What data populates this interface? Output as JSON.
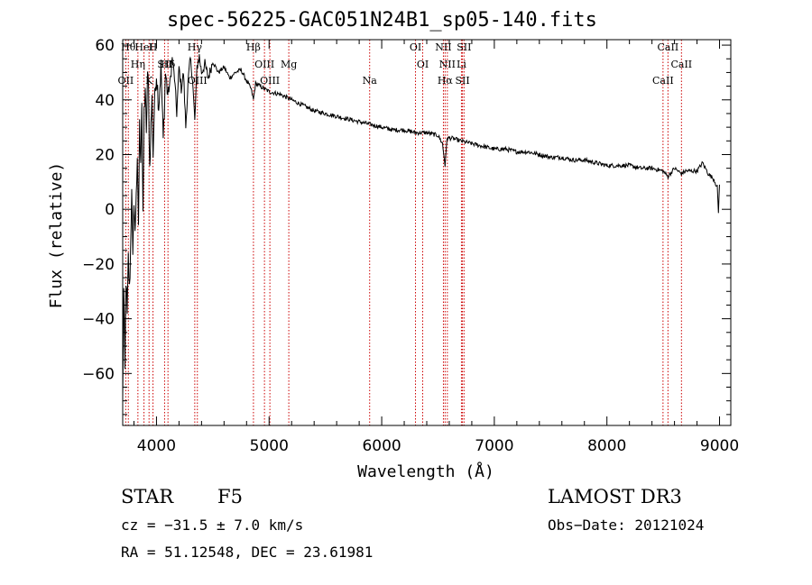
{
  "chart_data": {
    "type": "line",
    "title": "spec-56225-GAC051N24B1_sp05-140.fits",
    "xlabel": "Wavelength (Å)",
    "ylabel": "Flux (relative)",
    "xlim": [
      3700,
      9100
    ],
    "ylim": [
      -79,
      62
    ],
    "xticks": [
      4000,
      5000,
      6000,
      7000,
      8000,
      9000
    ],
    "yticks": [
      -60,
      -40,
      -20,
      0,
      20,
      40,
      60
    ],
    "series": [
      {
        "name": "spectrum",
        "x": [
          3700,
          3710,
          3720,
          3730,
          3740,
          3750,
          3760,
          3770,
          3780,
          3790,
          3800,
          3810,
          3820,
          3830,
          3840,
          3850,
          3860,
          3870,
          3880,
          3890,
          3900,
          3910,
          3920,
          3930,
          3940,
          3950,
          3960,
          3970,
          3980,
          3990,
          4000,
          4020,
          4040,
          4060,
          4080,
          4100,
          4120,
          4140,
          4160,
          4180,
          4200,
          4220,
          4240,
          4260,
          4280,
          4300,
          4320,
          4340,
          4360,
          4380,
          4400,
          4430,
          4460,
          4500,
          4550,
          4600,
          4650,
          4700,
          4750,
          4800,
          4840,
          4861,
          4880,
          4920,
          5000,
          5100,
          5200,
          5300,
          5400,
          5500,
          5600,
          5700,
          5800,
          5900,
          6000,
          6100,
          6200,
          6300,
          6400,
          6500,
          6540,
          6563,
          6580,
          6620,
          6700,
          6800,
          6900,
          7000,
          7100,
          7200,
          7300,
          7400,
          7500,
          7600,
          7700,
          7800,
          7900,
          8000,
          8100,
          8200,
          8300,
          8400,
          8498,
          8542,
          8600,
          8662,
          8700,
          8800,
          8850,
          8900,
          8950,
          8980,
          8990,
          9000
        ],
        "y": [
          -70,
          -30,
          -60,
          -25,
          -40,
          -18,
          -30,
          -15,
          10,
          -20,
          5,
          -10,
          8,
          15,
          -5,
          30,
          20,
          40,
          -5,
          35,
          45,
          25,
          50,
          42,
          15,
          30,
          40,
          20,
          35,
          45,
          50,
          38,
          52,
          25,
          50,
          42,
          46,
          55,
          48,
          35,
          52,
          44,
          50,
          30,
          46,
          55,
          48,
          32,
          52,
          56,
          50,
          53,
          48,
          54,
          50,
          52,
          48,
          50,
          51,
          47,
          44,
          40,
          46,
          45,
          43,
          42,
          40,
          38,
          36,
          35,
          34,
          33,
          32,
          31,
          30,
          29,
          29,
          28,
          28,
          27,
          24,
          16,
          26,
          26,
          25,
          24,
          23,
          22,
          22,
          21,
          21,
          20,
          19,
          19,
          18,
          18,
          17,
          16,
          16,
          16,
          15,
          15,
          14,
          12,
          15,
          13,
          14,
          14,
          17,
          13,
          11,
          8,
          -1,
          9
        ]
      }
    ],
    "lines": [
      {
        "label": "Hθ",
        "x": 3750
      },
      {
        "label": "Hη",
        "x": 3835
      },
      {
        "label": "K",
        "x": 3934
      },
      {
        "label": "H",
        "x": 3969
      },
      {
        "label": "Hδ",
        "x": 4102
      },
      {
        "label": "OII",
        "x": 3727
      },
      {
        "label": "HeI",
        "x": 3889
      },
      {
        "label": "SII",
        "x": 4072
      },
      {
        "label": "OIII",
        "x": 4363
      },
      {
        "label": "Hγ",
        "x": 4340
      },
      {
        "label": "OIII",
        "x": 4959
      },
      {
        "label": "OIII",
        "x": 5007
      },
      {
        "label": "Hβ",
        "x": 4861
      },
      {
        "label": "Mg",
        "x": 5175
      },
      {
        "label": "Na",
        "x": 5893
      },
      {
        "label": "OI",
        "x": 6300
      },
      {
        "label": "OI",
        "x": 6364
      },
      {
        "label": "Hα",
        "x": 6563
      },
      {
        "label": "NII",
        "x": 6548
      },
      {
        "label": "NII",
        "x": 6583
      },
      {
        "label": "SII",
        "x": 6717
      },
      {
        "label": "SII",
        "x": 6731
      },
      {
        "label": "Li",
        "x": 6708
      },
      {
        "label": "CaII",
        "x": 8498
      },
      {
        "label": "CaII",
        "x": 8542
      },
      {
        "label": "CaII",
        "x": 8662
      }
    ],
    "colors": {
      "axis": "#000000",
      "line": "#000000",
      "marker": "#cc0000"
    }
  },
  "info": {
    "class": "STAR",
    "subclass": "F5",
    "survey": "LAMOST DR3",
    "cz": "cz = −31.5 ± 7.0 km/s",
    "obsdate": "Obs−Date: 20121024",
    "radec": "RA =  51.12548, DEC =  23.61981"
  }
}
